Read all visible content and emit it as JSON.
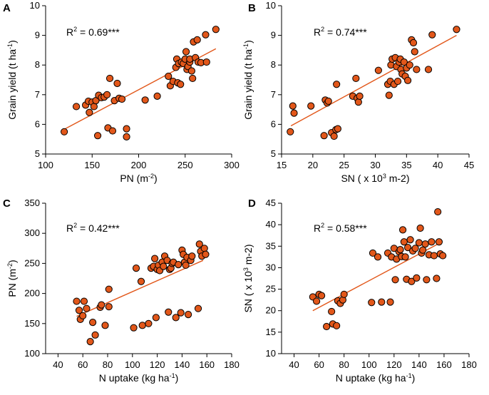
{
  "colors": {
    "marker": "#e2571a",
    "trendline": "#e2571a",
    "axis": "#000000"
  },
  "chart_data": [
    {
      "panel": "A",
      "type": "scatter",
      "xlabel": "PN (m",
      "xlabel_sup": "-2",
      "xlabel_end": ")",
      "ylabel": "Grain yield (t ha",
      "ylabel_sup": "-1",
      "ylabel_end": ")",
      "r2_prefix": "R",
      "r2_sup": "2",
      "r2_value": " = 0.69***",
      "xlim": [
        100,
        300
      ],
      "ylim": [
        5,
        10
      ],
      "xticks": [
        100,
        150,
        200,
        250,
        300
      ],
      "yticks": [
        5,
        6,
        7,
        8,
        9,
        10
      ],
      "trend": [
        [
          118,
          5.8
        ],
        [
          283,
          8.55
        ]
      ],
      "points": [
        [
          120,
          5.75
        ],
        [
          133,
          6.6
        ],
        [
          143,
          6.65
        ],
        [
          146,
          6.78
        ],
        [
          147,
          6.4
        ],
        [
          150,
          6.75
        ],
        [
          152,
          6.6
        ],
        [
          154,
          6.8
        ],
        [
          156,
          5.62
        ],
        [
          157,
          6.98
        ],
        [
          160,
          6.9
        ],
        [
          163,
          6.92
        ],
        [
          166,
          7.0
        ],
        [
          167,
          5.88
        ],
        [
          169,
          7.55
        ],
        [
          172,
          5.78
        ],
        [
          174,
          6.8
        ],
        [
          177,
          7.38
        ],
        [
          179,
          6.88
        ],
        [
          182,
          6.85
        ],
        [
          187,
          5.85
        ],
        [
          187,
          5.58
        ],
        [
          207,
          6.82
        ],
        [
          220,
          6.95
        ],
        [
          232,
          7.62
        ],
        [
          234,
          7.3
        ],
        [
          237,
          7.45
        ],
        [
          240,
          7.92
        ],
        [
          241,
          8.2
        ],
        [
          242,
          7.4
        ],
        [
          243,
          8.05
        ],
        [
          245,
          7.35
        ],
        [
          246,
          8.1
        ],
        [
          248,
          8.05
        ],
        [
          250,
          8.2
        ],
        [
          251,
          8.45
        ],
        [
          252,
          7.85
        ],
        [
          253,
          7.95
        ],
        [
          255,
          8.1
        ],
        [
          255,
          8.2
        ],
        [
          257,
          7.8
        ],
        [
          258,
          7.55
        ],
        [
          259,
          8.78
        ],
        [
          261,
          8.25
        ],
        [
          263,
          8.85
        ],
        [
          264,
          8.1
        ],
        [
          267,
          8.08
        ],
        [
          272,
          9.02
        ],
        [
          273,
          8.1
        ],
        [
          283,
          9.2
        ]
      ]
    },
    {
      "panel": "B",
      "type": "scatter",
      "xlabel": "SN ( x 10",
      "xlabel_sup": "3",
      "xlabel_end": " m-2)",
      "ylabel": "Grain yield (t ha",
      "ylabel_sup": "-1",
      "ylabel_end": ")",
      "r2_prefix": "R",
      "r2_sup": "2",
      "r2_value": " = 0.74***",
      "xlim": [
        15,
        45
      ],
      "ylim": [
        5,
        10
      ],
      "xticks": [
        15,
        20,
        25,
        30,
        35,
        40,
        45
      ],
      "yticks": [
        5,
        6,
        7,
        8,
        9,
        10
      ],
      "trend": [
        [
          16.5,
          5.95
        ],
        [
          43,
          9.0
        ]
      ],
      "points": [
        [
          16.4,
          5.75
        ],
        [
          16.8,
          6.62
        ],
        [
          17.0,
          6.38
        ],
        [
          19.7,
          6.62
        ],
        [
          21.8,
          5.62
        ],
        [
          22.0,
          6.82
        ],
        [
          22.3,
          6.72
        ],
        [
          22.5,
          6.78
        ],
        [
          23.0,
          5.72
        ],
        [
          23.4,
          5.6
        ],
        [
          23.7,
          5.82
        ],
        [
          23.8,
          7.35
        ],
        [
          24.0,
          5.85
        ],
        [
          26.4,
          6.95
        ],
        [
          26.9,
          7.55
        ],
        [
          27.1,
          6.88
        ],
        [
          27.3,
          6.75
        ],
        [
          27.5,
          6.95
        ],
        [
          30.5,
          7.82
        ],
        [
          32.0,
          7.35
        ],
        [
          32.2,
          6.98
        ],
        [
          32.4,
          7.45
        ],
        [
          32.5,
          8.0
        ],
        [
          32.7,
          8.2
        ],
        [
          33.0,
          7.35
        ],
        [
          33.2,
          8.25
        ],
        [
          33.4,
          7.95
        ],
        [
          33.6,
          7.45
        ],
        [
          33.8,
          8.1
        ],
        [
          34.0,
          8.2
        ],
        [
          34.1,
          7.85
        ],
        [
          34.3,
          7.7
        ],
        [
          34.6,
          8.1
        ],
        [
          34.8,
          7.62
        ],
        [
          35.0,
          7.9
        ],
        [
          35.2,
          7.48
        ],
        [
          35.5,
          8.0
        ],
        [
          35.8,
          8.85
        ],
        [
          36.1,
          8.75
        ],
        [
          36.3,
          8.45
        ],
        [
          36.6,
          7.85
        ],
        [
          38.5,
          7.85
        ],
        [
          39.1,
          9.02
        ],
        [
          43.0,
          9.2
        ]
      ]
    },
    {
      "panel": "C",
      "type": "scatter",
      "xlabel": "N uptake (kg ha",
      "xlabel_sup": "-1",
      "xlabel_end": ")",
      "ylabel": "PN (m",
      "ylabel_sup": "-2",
      "ylabel_end": ")",
      "r2_prefix": "R",
      "r2_sup": "2",
      "r2_value": " = 0.42***",
      "xlim": [
        30,
        180
      ],
      "ylim": [
        100,
        350
      ],
      "xticks": [
        40,
        60,
        80,
        100,
        120,
        140,
        160,
        180
      ],
      "yticks": [
        100,
        150,
        200,
        250,
        300,
        350
      ],
      "trend": [
        [
          55,
          162
        ],
        [
          157,
          255
        ]
      ],
      "points": [
        [
          55,
          187
        ],
        [
          57,
          172
        ],
        [
          58,
          157
        ],
        [
          60,
          163
        ],
        [
          61,
          187
        ],
        [
          63,
          175
        ],
        [
          66,
          120
        ],
        [
          68,
          152
        ],
        [
          70,
          131
        ],
        [
          74,
          177
        ],
        [
          75,
          181
        ],
        [
          78,
          147
        ],
        [
          81,
          207
        ],
        [
          81,
          178
        ],
        [
          101,
          143
        ],
        [
          103,
          242
        ],
        [
          107,
          220
        ],
        [
          108,
          147
        ],
        [
          113,
          150
        ],
        [
          115,
          242
        ],
        [
          117,
          245
        ],
        [
          118,
          258
        ],
        [
          119,
          160
        ],
        [
          120,
          240
        ],
        [
          121,
          247
        ],
        [
          122,
          238
        ],
        [
          124,
          252
        ],
        [
          125,
          245
        ],
        [
          126,
          262
        ],
        [
          128,
          255
        ],
        [
          129,
          169
        ],
        [
          130,
          240
        ],
        [
          131,
          242
        ],
        [
          132,
          250
        ],
        [
          133,
          252
        ],
        [
          135,
          160
        ],
        [
          137,
          248
        ],
        [
          139,
          168
        ],
        [
          140,
          272
        ],
        [
          141,
          265
        ],
        [
          142,
          252
        ],
        [
          143,
          247
        ],
        [
          144,
          260
        ],
        [
          145,
          165
        ],
        [
          147,
          255
        ],
        [
          148,
          262
        ],
        [
          153,
          175
        ],
        [
          154,
          282
        ],
        [
          155,
          270
        ],
        [
          156,
          262
        ],
        [
          158,
          275
        ],
        [
          159,
          265
        ]
      ]
    },
    {
      "panel": "D",
      "type": "scatter",
      "xlabel": "N uptake (kg ha",
      "xlabel_sup": "-1",
      "xlabel_end": ")",
      "ylabel": "SN ( x 10",
      "ylabel_sup": "3",
      "ylabel_end": " m-2)",
      "r2_prefix": "R",
      "r2_sup": "2",
      "r2_value": " = 0.58***",
      "xlim": [
        30,
        180
      ],
      "ylim": [
        10,
        45
      ],
      "xticks": [
        40,
        60,
        80,
        100,
        120,
        140,
        160,
        180
      ],
      "yticks": [
        10,
        15,
        20,
        25,
        30,
        35,
        40,
        45
      ],
      "trend": [
        [
          55,
          20.0
        ],
        [
          157,
          35.8
        ]
      ],
      "points": [
        [
          55,
          23.2
        ],
        [
          58,
          22.2
        ],
        [
          60,
          23.8
        ],
        [
          62,
          23.5
        ],
        [
          66,
          16.3
        ],
        [
          70,
          19.8
        ],
        [
          71,
          16.9
        ],
        [
          74,
          16.5
        ],
        [
          75,
          22.3
        ],
        [
          77,
          21.7
        ],
        [
          79,
          22.5
        ],
        [
          80,
          23.8
        ],
        [
          102,
          21.9
        ],
        [
          103,
          33.4
        ],
        [
          107,
          32.5
        ],
        [
          110,
          22.0
        ],
        [
          115,
          33.4
        ],
        [
          117,
          22.0
        ],
        [
          118,
          32.5
        ],
        [
          120,
          34.5
        ],
        [
          121,
          27.2
        ],
        [
          122,
          32.0
        ],
        [
          124,
          33.7
        ],
        [
          125,
          34.2
        ],
        [
          126,
          32.6
        ],
        [
          127,
          38.8
        ],
        [
          128,
          36.0
        ],
        [
          129,
          32.5
        ],
        [
          130,
          27.3
        ],
        [
          131,
          34.7
        ],
        [
          133,
          36.5
        ],
        [
          134,
          26.8
        ],
        [
          135,
          33.9
        ],
        [
          137,
          34.5
        ],
        [
          138,
          27.6
        ],
        [
          140,
          35.8
        ],
        [
          141,
          39.2
        ],
        [
          142,
          33.4
        ],
        [
          143,
          34.1
        ],
        [
          145,
          35.5
        ],
        [
          146,
          27.2
        ],
        [
          148,
          33.0
        ],
        [
          150,
          36.0
        ],
        [
          152,
          32.8
        ],
        [
          154,
          27.5
        ],
        [
          155,
          43.0
        ],
        [
          156,
          36.0
        ],
        [
          157,
          33.2
        ],
        [
          159,
          32.8
        ]
      ]
    }
  ]
}
